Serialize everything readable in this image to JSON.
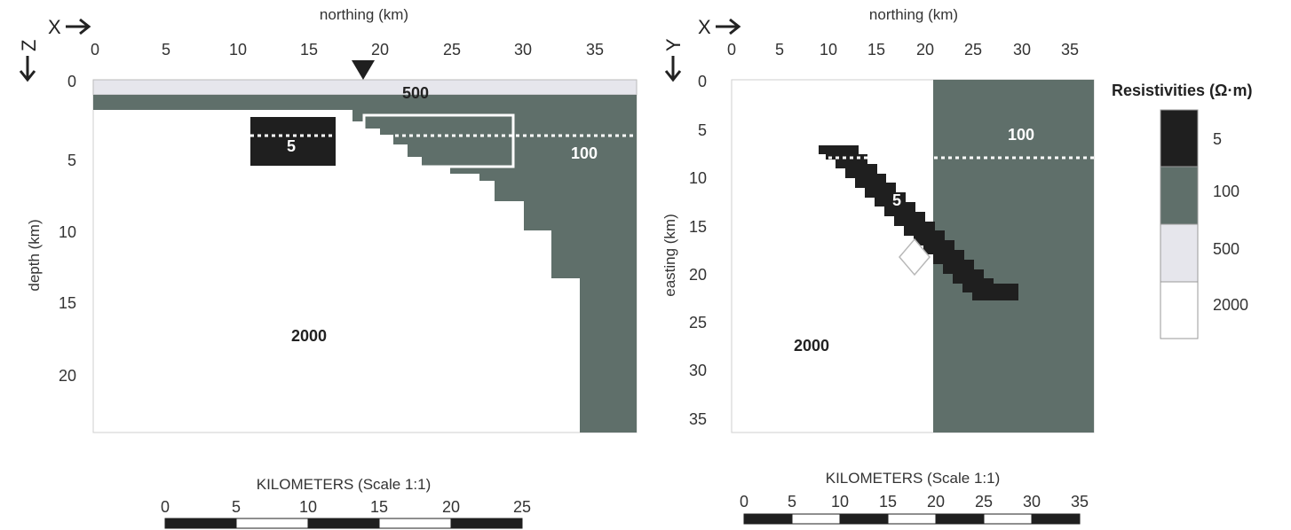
{
  "colors": {
    "r5": "#1f1f1f",
    "r100": "#5f6f6a",
    "r500": "#e6e6ec",
    "r2000": "#ffffff",
    "axis": "#333333"
  },
  "left_panel": {
    "x_dir": "X",
    "z_dir": "Z",
    "top_axis_label": "northing (km)",
    "left_axis_label": "depth (km)",
    "x_ticks": [
      "0",
      "5",
      "10",
      "15",
      "20",
      "25",
      "30",
      "35"
    ],
    "y_ticks": [
      "0",
      "5",
      "10",
      "15",
      "20"
    ],
    "labels": {
      "r500": "500",
      "r5": "5",
      "r100": "100",
      "r2000": "2000"
    },
    "scale_bar": {
      "title": "KILOMETERS (Scale 1:1)",
      "ticks": [
        "0",
        "5",
        "10",
        "15",
        "20",
        "25"
      ]
    }
  },
  "right_panel": {
    "x_dir": "X",
    "y_dir": "Y",
    "top_axis_label": "northing (km)",
    "left_axis_label": "easting (km)",
    "x_ticks": [
      "0",
      "5",
      "10",
      "15",
      "20",
      "25",
      "30",
      "35"
    ],
    "y_ticks": [
      "0",
      "5",
      "10",
      "15",
      "20",
      "25",
      "30",
      "35"
    ],
    "labels": {
      "r100": "100",
      "r5": "5",
      "r2000": "2000"
    },
    "scale_bar": {
      "title": "KILOMETERS (Scale 1:1)",
      "ticks": [
        "0",
        "5",
        "10",
        "15",
        "20",
        "25",
        "30",
        "35"
      ]
    }
  },
  "legend": {
    "title": "Resistivities (Ω·m)",
    "entries": [
      {
        "label": "5",
        "color": "#1f1f1f"
      },
      {
        "label": "100",
        "color": "#5f6f6a"
      },
      {
        "label": "500",
        "color": "#e6e6ec"
      },
      {
        "label": "2000",
        "color": "#ffffff"
      }
    ]
  }
}
